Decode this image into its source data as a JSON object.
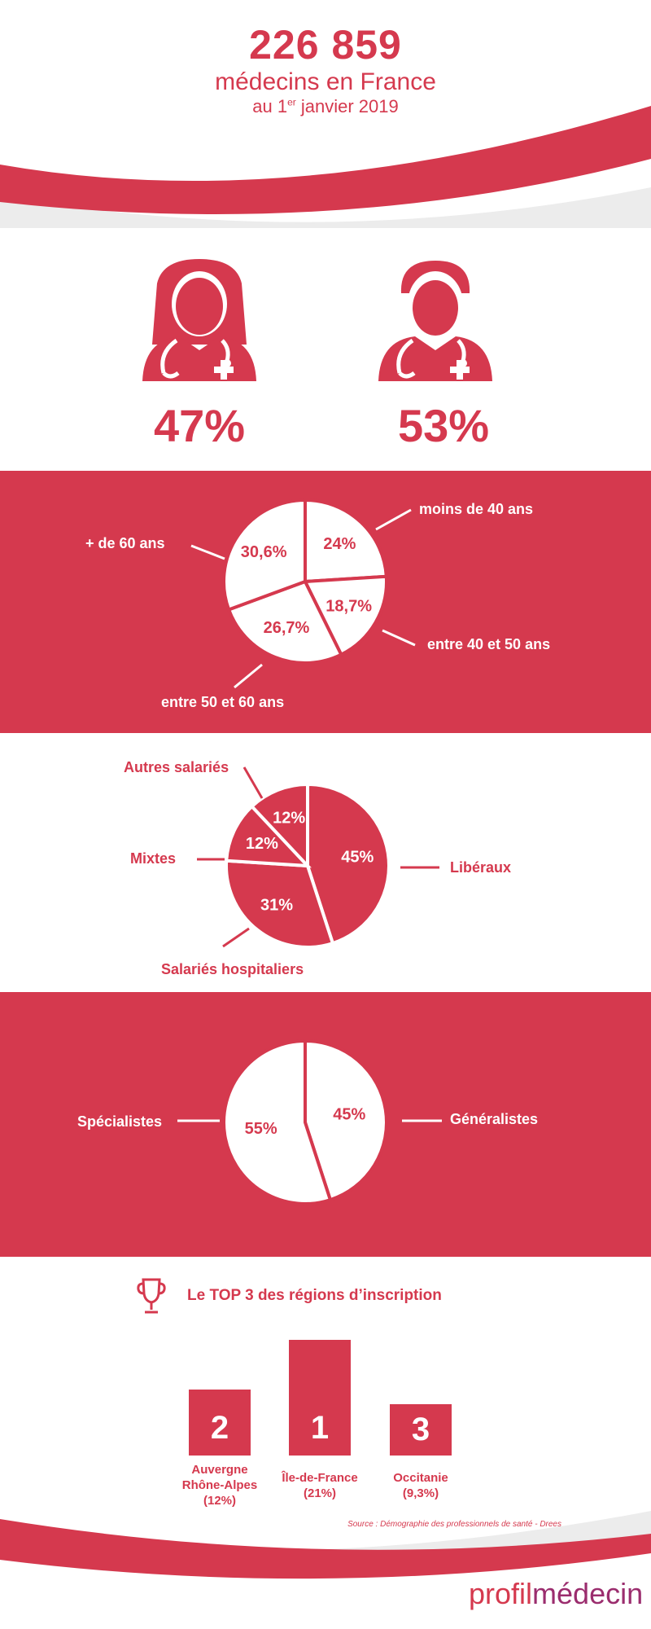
{
  "header": {
    "total": "226 859",
    "subtitle": "médecins en France",
    "date_prefix": "au 1",
    "date_sup": "er",
    "date_suffix": " janvier 2019"
  },
  "gender": {
    "women_pct": "47%",
    "men_pct": "53%",
    "icons": [
      "female-doctor-icon",
      "male-doctor-icon"
    ]
  },
  "chart_data": [
    {
      "type": "pie",
      "categories": [
        "moins de 40 ans",
        "entre 40 et 50 ans",
        "entre 50 et 60 ans",
        "+ de 60 ans"
      ],
      "values": [
        24,
        18.7,
        26.7,
        30.6
      ],
      "value_labels": [
        "24%",
        "18,7%",
        "26,7%",
        "30,6%"
      ]
    },
    {
      "type": "pie",
      "categories": [
        "Libéraux",
        "Salariés hospitaliers",
        "Mixtes",
        "Autres salariés"
      ],
      "values": [
        45,
        31,
        12,
        12
      ],
      "value_labels": [
        "45%",
        "31%",
        "12%",
        "12%"
      ]
    },
    {
      "type": "pie",
      "categories": [
        "Généralistes",
        "Spécialistes"
      ],
      "values": [
        45,
        55
      ],
      "value_labels": [
        "45%",
        "55%"
      ]
    },
    {
      "type": "bar",
      "title": "Le TOP 3 des régions d’inscription",
      "categories": [
        "Auvergne Rhône-Alpes",
        "Île-de-France",
        "Occitanie"
      ],
      "values": [
        12,
        21,
        9.3
      ],
      "ranks": [
        "2",
        "1",
        "3"
      ],
      "value_labels": [
        "(12%)",
        "(21%)",
        "(9,3%)"
      ]
    }
  ],
  "regions": [
    {
      "rank": "2",
      "name_line1": "Auvergne",
      "name_line2": "Rhône-Alpes",
      "pct": "(12%)"
    },
    {
      "rank": "1",
      "name_line1": "Île-de-France",
      "name_line2": "",
      "pct": "(21%)"
    },
    {
      "rank": "3",
      "name_line1": "Occitanie",
      "name_line2": "",
      "pct": "(9,3%)"
    }
  ],
  "top3": {
    "icon": "trophy-icon"
  },
  "source": "Source : Démographie des professionnels de santé - Drees",
  "logo": {
    "part1": "profil",
    "part2": "médecin"
  },
  "colors": {
    "brand": "#d5394e",
    "white": "#ffffff",
    "grey_wave": "#e6e6e6",
    "logo_purple": "#9b2d6e"
  }
}
